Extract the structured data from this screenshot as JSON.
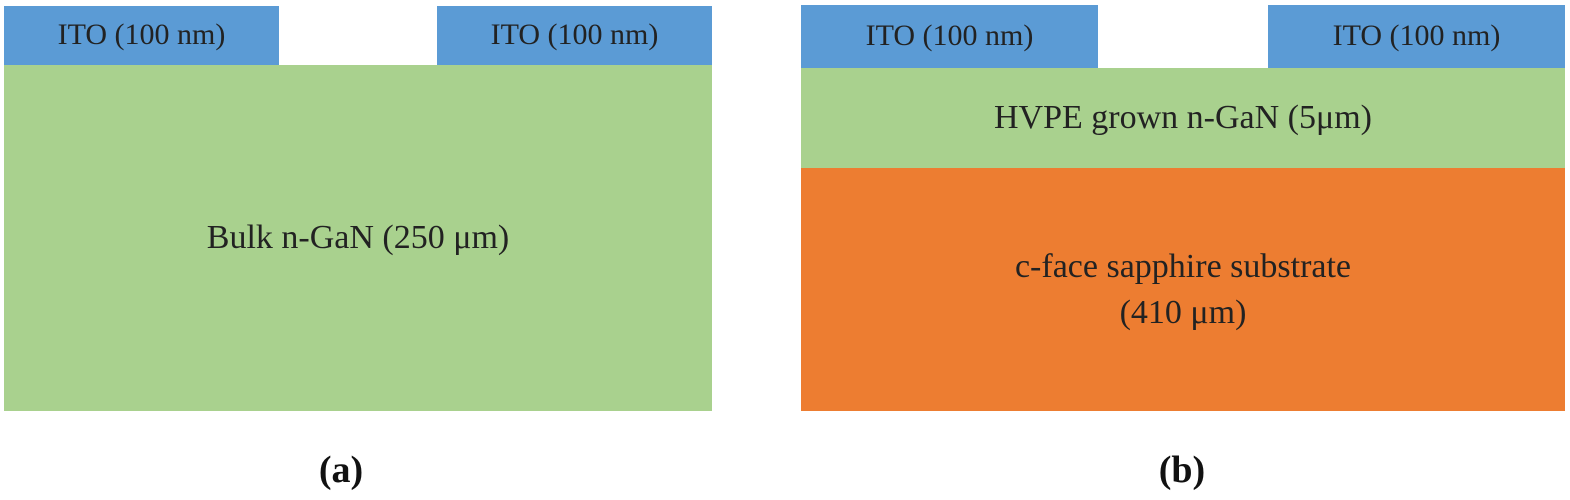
{
  "colors": {
    "ito": "#5B9BD5",
    "gan": "#A9D18E",
    "sapphire": "#ED7D31"
  },
  "panel_a": {
    "ito_left": "ITO (100 nm)",
    "ito_right": "ITO (100 nm)",
    "bulk_layer": "Bulk n-GaN (250 μm)",
    "caption": "(a)"
  },
  "panel_b": {
    "ito_left": "ITO (100 nm)",
    "ito_right": "ITO (100 nm)",
    "hvpe_layer": "HVPE grown n-GaN (5μm)",
    "substrate_line1": "c-face sapphire substrate",
    "substrate_line2": "(410 μm)",
    "caption": "(b)"
  }
}
